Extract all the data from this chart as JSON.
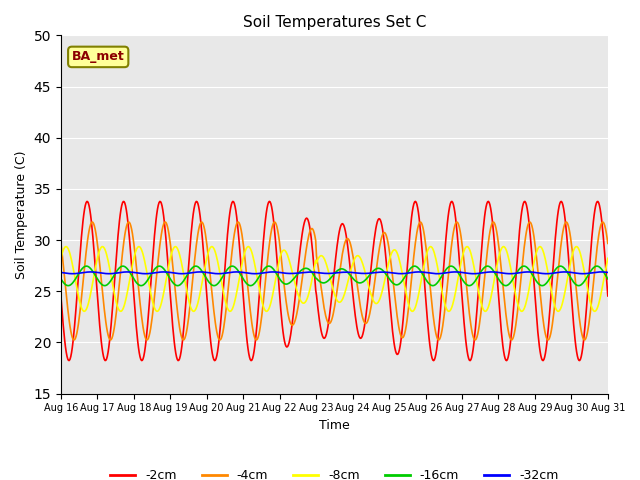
{
  "title": "Soil Temperatures Set C",
  "xlabel": "Time",
  "ylabel": "Soil Temperature (C)",
  "ylim": [
    15,
    50
  ],
  "yticks": [
    15,
    20,
    25,
    30,
    35,
    40,
    45,
    50
  ],
  "annotation_label": "BA_met",
  "bg_color": "#e8e8e8",
  "legend_entries": [
    "-2cm",
    "-4cm",
    "-8cm",
    "-16cm",
    "-32cm"
  ],
  "legend_colors": [
    "#ff0000",
    "#ff8800",
    "#ffff00",
    "#00cc00",
    "#0000ff"
  ],
  "x_tick_labels": [
    "Aug 16",
    "Aug 17",
    "Aug 18",
    "Aug 19",
    "Aug 20",
    "Aug 21",
    "Aug 22",
    "Aug 23",
    "Aug 24",
    "Aug 25",
    "Aug 26",
    "Aug 27",
    "Aug 28",
    "Aug 29",
    "Aug 30",
    "Aug 31"
  ],
  "n_days": 15,
  "pts_per_day": 48
}
